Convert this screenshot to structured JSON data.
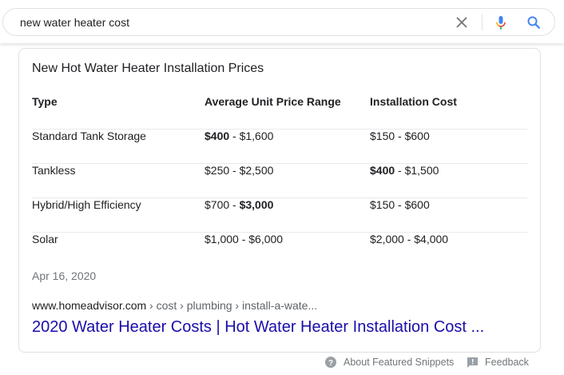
{
  "search": {
    "query": "new water heater cost",
    "clear_icon": "close-icon",
    "mic_icon": "mic-icon",
    "search_icon": "search-icon"
  },
  "snippet": {
    "title": "New Hot Water Heater Installation Prices",
    "headers": [
      "Type",
      "Average Unit Price Range",
      "Installation Cost"
    ],
    "rows": [
      {
        "type": "Standard Tank Storage",
        "price": {
          "pre": "",
          "bold": "$400",
          "post": " - $1,600"
        },
        "install": {
          "pre": "",
          "bold": "",
          "post": "$150 - $600"
        }
      },
      {
        "type": "Tankless",
        "price": {
          "pre": "",
          "bold": "",
          "post": "$250 - $2,500"
        },
        "install": {
          "pre": "",
          "bold": "$400",
          "post": " - $1,500"
        }
      },
      {
        "type": "Hybrid/High Efficiency",
        "price": {
          "pre": "$700 - ",
          "bold": "$3,000",
          "post": ""
        },
        "install": {
          "pre": "",
          "bold": "",
          "post": "$150 - $600"
        }
      },
      {
        "type": "Solar",
        "price": {
          "pre": "",
          "bold": "",
          "post": "$1,000 - $6,000"
        },
        "install": {
          "pre": "",
          "bold": "",
          "post": "$2,000 - $4,000"
        }
      }
    ],
    "date": "Apr 16, 2020",
    "url_domain": "www.homeadvisor.com",
    "url_path": " › cost › plumbing › install-a-wate...",
    "link_text": "2020 Water Heater Costs | Hot Water Heater Installation Cost ..."
  },
  "footer": {
    "about": "About Featured Snippets",
    "feedback": "Feedback"
  },
  "colors": {
    "link": "#1a0dab",
    "search_blue": "#4285f4",
    "border": "#dfe1e5"
  }
}
